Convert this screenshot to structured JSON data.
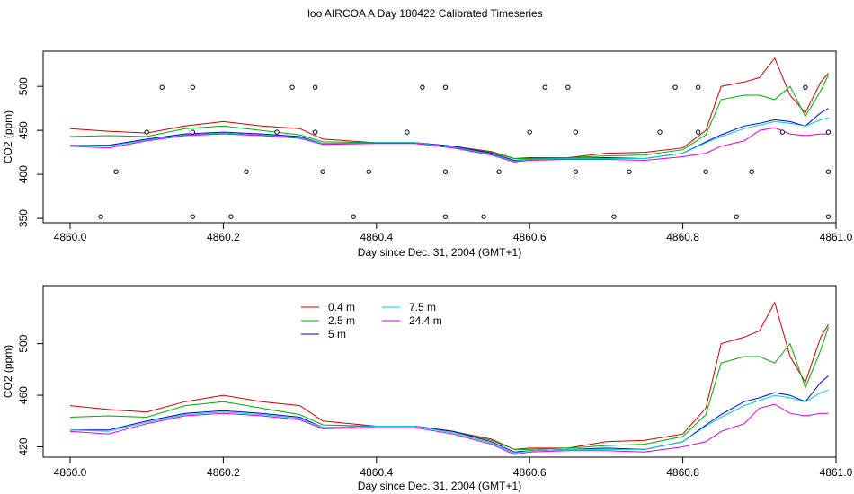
{
  "title": "loo AIRCOA A  Day 180422  Calibrated Timeseries",
  "chart_data": [
    {
      "type": "line",
      "xlabel": "Day since Dec. 31, 2004 (GMT+1)",
      "ylabel": "CO2 (ppm)",
      "xlim": [
        4860.0,
        4861.0
      ],
      "ylim": [
        345,
        540
      ],
      "xticks": [
        "4860.0",
        "4860.2",
        "4860.4",
        "4860.6",
        "4860.8",
        "4861.0"
      ],
      "yticks": [
        "350",
        "400",
        "450",
        "500"
      ],
      "grid": false,
      "series": [
        {
          "name": "0.4 m",
          "color": "#cc0000",
          "x": [
            4860.0,
            4860.05,
            4860.1,
            4860.15,
            4860.2,
            4860.25,
            4860.3,
            4860.33,
            4860.4,
            4860.45,
            4860.5,
            4860.55,
            4860.58,
            4860.6,
            4860.65,
            4860.7,
            4860.75,
            4860.8,
            4860.83,
            4860.85,
            4860.88,
            4860.9,
            4860.92,
            4860.94,
            4860.96,
            4860.98,
            4860.99
          ],
          "y": [
            452,
            449,
            447,
            455,
            460,
            455,
            452,
            440,
            436,
            436,
            432,
            426,
            418,
            419,
            419,
            424,
            425,
            430,
            450,
            500,
            505,
            510,
            532,
            490,
            470,
            505,
            515
          ]
        },
        {
          "name": "2.5 m",
          "color": "#00aa00",
          "x": [
            4860.0,
            4860.05,
            4860.1,
            4860.15,
            4860.2,
            4860.25,
            4860.3,
            4860.33,
            4860.4,
            4860.45,
            4860.5,
            4860.55,
            4860.58,
            4860.6,
            4860.65,
            4860.7,
            4860.75,
            4860.8,
            4860.83,
            4860.85,
            4860.88,
            4860.9,
            4860.92,
            4860.94,
            4860.96,
            4860.98,
            4860.99
          ],
          "y": [
            443,
            444,
            443,
            452,
            455,
            450,
            445,
            437,
            436,
            436,
            432,
            425,
            418,
            418,
            419,
            421,
            422,
            428,
            445,
            485,
            490,
            490,
            485,
            500,
            466,
            495,
            513
          ]
        },
        {
          "name": "5 m",
          "color": "#0000cc",
          "x": [
            4860.0,
            4860.05,
            4860.1,
            4860.15,
            4860.2,
            4860.25,
            4860.3,
            4860.33,
            4860.4,
            4860.45,
            4860.5,
            4860.55,
            4860.58,
            4860.6,
            4860.65,
            4860.7,
            4860.75,
            4860.8,
            4860.83,
            4860.85,
            4860.88,
            4860.9,
            4860.92,
            4860.94,
            4860.96,
            4860.98,
            4860.99
          ],
          "y": [
            433,
            433,
            440,
            446,
            448,
            446,
            443,
            435,
            436,
            436,
            432,
            424,
            416,
            417,
            418,
            419,
            418,
            424,
            437,
            445,
            455,
            458,
            462,
            460,
            455,
            470,
            475
          ]
        },
        {
          "name": "7.5 m",
          "color": "#00cccc",
          "x": [
            4860.0,
            4860.05,
            4860.1,
            4860.15,
            4860.2,
            4860.25,
            4860.3,
            4860.33,
            4860.4,
            4860.45,
            4860.5,
            4860.55,
            4860.58,
            4860.6,
            4860.65,
            4860.7,
            4860.75,
            4860.8,
            4860.83,
            4860.85,
            4860.88,
            4860.9,
            4860.92,
            4860.94,
            4860.96,
            4860.98,
            4860.99
          ],
          "y": [
            433,
            432,
            439,
            445,
            447,
            445,
            442,
            435,
            436,
            436,
            431,
            423,
            415,
            417,
            418,
            418,
            418,
            424,
            436,
            443,
            452,
            456,
            460,
            458,
            455,
            462,
            464
          ]
        },
        {
          "name": "24.4 m",
          "color": "#dd00dd",
          "x": [
            4860.0,
            4860.05,
            4860.1,
            4860.15,
            4860.2,
            4860.25,
            4860.3,
            4860.33,
            4860.4,
            4860.45,
            4860.5,
            4860.55,
            4860.58,
            4860.6,
            4860.65,
            4860.7,
            4860.75,
            4860.8,
            4860.83,
            4860.85,
            4860.88,
            4860.9,
            4860.92,
            4860.94,
            4860.96,
            4860.98,
            4860.99
          ],
          "y": [
            432,
            430,
            438,
            444,
            446,
            444,
            441,
            434,
            435,
            435,
            430,
            422,
            414,
            416,
            417,
            417,
            416,
            420,
            424,
            432,
            438,
            450,
            453,
            446,
            444,
            446,
            446
          ]
        }
      ],
      "markers": {
        "shape": "open-circle",
        "x": [
          4860.04,
          4860.06,
          4860.1,
          4860.12,
          4860.16,
          4860.16,
          4860.16,
          4860.21,
          4860.23,
          4860.27,
          4860.29,
          4860.32,
          4860.32,
          4860.33,
          4860.37,
          4860.39,
          4860.44,
          4860.46,
          4860.49,
          4860.49,
          4860.49,
          4860.54,
          4860.56,
          4860.6,
          4860.62,
          4860.65,
          4860.66,
          4860.66,
          4860.71,
          4860.73,
          4860.77,
          4860.79,
          4860.82,
          4860.82,
          4860.83,
          4860.87,
          4860.89,
          4860.93,
          4860.96,
          4860.99,
          4860.99,
          4860.99
        ],
        "y": [
          352,
          403,
          448,
          499,
          499,
          448,
          352,
          352,
          403,
          448,
          499,
          499,
          448,
          403,
          352,
          403,
          448,
          499,
          499,
          403,
          352,
          352,
          403,
          448,
          499,
          499,
          448,
          403,
          352,
          403,
          448,
          499,
          499,
          448,
          403,
          352,
          403,
          448,
          499,
          403,
          352,
          448
        ]
      }
    },
    {
      "type": "line",
      "xlabel": "Day since Dec. 31, 2004 (GMT+1)",
      "ylabel": "CO2 (ppm)",
      "xlim": [
        4860.0,
        4861.0
      ],
      "ylim": [
        412,
        545
      ],
      "xticks": [
        "4860.0",
        "4860.2",
        "4860.4",
        "4860.6",
        "4860.8",
        "4861.0"
      ],
      "yticks": [
        "420",
        "460",
        "500"
      ],
      "grid": false,
      "legend": "top-left",
      "series_ref": "same series as first panel"
    }
  ]
}
